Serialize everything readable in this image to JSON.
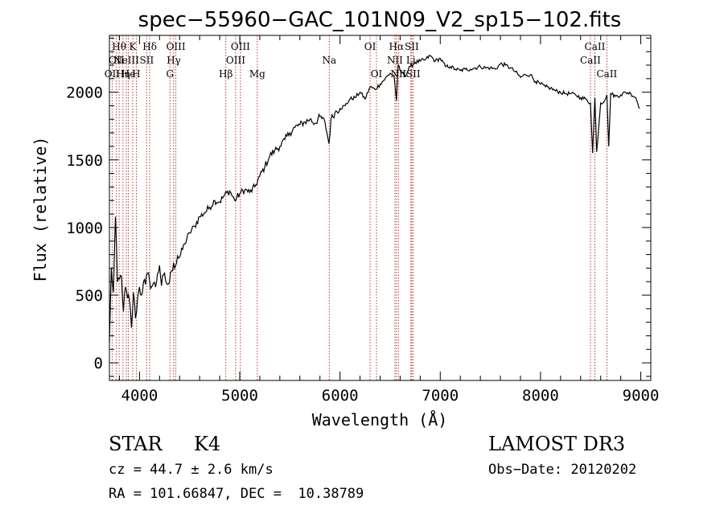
{
  "colors": {
    "axis": "#000000",
    "spectrum": "#000000",
    "line_marker": "#b22222"
  },
  "chart_data": {
    "type": "line",
    "title": "spec−55960−GAC_101N09_V2_sp15−102.fits",
    "xlabel": "Wavelength (Å)",
    "ylabel": "Flux (relative)",
    "xlim": [
      3700,
      9100
    ],
    "ylim": [
      -130,
      2420
    ],
    "xticks": [
      4000,
      5000,
      6000,
      7000,
      8000,
      9000
    ],
    "yticks": [
      0,
      500,
      1000,
      1500,
      2000
    ],
    "x_minor_step": 200,
    "y_minor_step": 100,
    "spectrum": {
      "x": [
        3700,
        3720,
        3740,
        3760,
        3780,
        3800,
        3820,
        3840,
        3860,
        3880,
        3900,
        3920,
        3940,
        3960,
        3980,
        4000,
        4020,
        4040,
        4060,
        4080,
        4100,
        4120,
        4140,
        4160,
        4180,
        4200,
        4220,
        4240,
        4260,
        4280,
        4300,
        4320,
        4340,
        4360,
        4380,
        4400,
        4450,
        4500,
        4550,
        4600,
        4650,
        4700,
        4750,
        4800,
        4850,
        4900,
        4950,
        5000,
        5050,
        5100,
        5150,
        5200,
        5250,
        5300,
        5350,
        5400,
        5450,
        5500,
        5550,
        5600,
        5650,
        5700,
        5750,
        5800,
        5850,
        5890,
        5910,
        5950,
        6000,
        6050,
        6100,
        6150,
        6200,
        6250,
        6300,
        6350,
        6400,
        6450,
        6500,
        6540,
        6563,
        6580,
        6600,
        6650,
        6700,
        6750,
        6800,
        6850,
        6900,
        6950,
        7000,
        7050,
        7100,
        7150,
        7200,
        7250,
        7300,
        7350,
        7400,
        7450,
        7500,
        7550,
        7600,
        7650,
        7700,
        7750,
        7800,
        7850,
        7900,
        7950,
        8000,
        8050,
        8100,
        8150,
        8200,
        8250,
        8300,
        8350,
        8400,
        8450,
        8498,
        8520,
        8542,
        8560,
        8600,
        8640,
        8662,
        8680,
        8700,
        8750,
        8800,
        8850,
        8900,
        8950,
        8990
      ],
      "y": [
        150,
        700,
        520,
        1080,
        600,
        620,
        640,
        380,
        560,
        480,
        470,
        260,
        520,
        330,
        470,
        560,
        500,
        600,
        580,
        660,
        610,
        560,
        590,
        560,
        660,
        720,
        570,
        650,
        610,
        580,
        600,
        680,
        740,
        720,
        790,
        780,
        880,
        960,
        1010,
        1080,
        1110,
        1150,
        1200,
        1190,
        1240,
        1270,
        1200,
        1250,
        1280,
        1260,
        1300,
        1380,
        1450,
        1530,
        1570,
        1600,
        1650,
        1700,
        1740,
        1760,
        1780,
        1800,
        1770,
        1820,
        1780,
        1620,
        1800,
        1850,
        1880,
        1900,
        1950,
        1960,
        2000,
        1950,
        2040,
        2020,
        2060,
        2100,
        2140,
        2120,
        1940,
        2200,
        2160,
        2120,
        2190,
        2220,
        2230,
        2240,
        2270,
        2230,
        2250,
        2190,
        2190,
        2170,
        2160,
        2170,
        2170,
        2180,
        2190,
        2180,
        2180,
        2170,
        2210,
        2200,
        2180,
        2150,
        2110,
        2130,
        2130,
        2080,
        2060,
        2040,
        2030,
        2010,
        2000,
        1990,
        1990,
        1980,
        1960,
        1950,
        1920,
        1550,
        1960,
        1560,
        1920,
        1940,
        1980,
        1600,
        1990,
        1970,
        1980,
        2000,
        1990,
        1960,
        1880
      ]
    },
    "lines": [
      {
        "wave": 3727,
        "label": "OII",
        "row": 3
      },
      {
        "wave": 3770,
        "label": "OII",
        "row": 2
      },
      {
        "wave": 3797,
        "label": "Hθ",
        "row": 1
      },
      {
        "wave": 3835,
        "label": "Hη",
        "row": 3
      },
      {
        "wave": 3869,
        "label": "NeIII",
        "row": 2
      },
      {
        "wave": 3889,
        "label": "He",
        "row": 3
      },
      {
        "wave": 3933,
        "label": "K",
        "row": 1
      },
      {
        "wave": 3968,
        "label": "H",
        "row": 3
      },
      {
        "wave": 4072,
        "label": "SII",
        "row": 2
      },
      {
        "wave": 4102,
        "label": "Hδ",
        "row": 1
      },
      {
        "wave": 4304,
        "label": "G",
        "row": 3
      },
      {
        "wave": 4341,
        "label": "Hγ",
        "row": 2
      },
      {
        "wave": 4363,
        "label": "OIII",
        "row": 1
      },
      {
        "wave": 4861,
        "label": "Hβ",
        "row": 3
      },
      {
        "wave": 4959,
        "label": "OIII",
        "row": 2
      },
      {
        "wave": 5007,
        "label": "OIII",
        "row": 1
      },
      {
        "wave": 5175,
        "label": "Mg",
        "row": 3
      },
      {
        "wave": 5893,
        "label": "Na",
        "row": 2
      },
      {
        "wave": 6300,
        "label": "OI",
        "row": 1
      },
      {
        "wave": 6364,
        "label": "OI",
        "row": 3
      },
      {
        "wave": 6548,
        "label": "NII",
        "row": 2
      },
      {
        "wave": 6563,
        "label": "Hα",
        "row": 1
      },
      {
        "wave": 6583,
        "label": "NII",
        "row": 3
      },
      {
        "wave": 6716,
        "label": "SII",
        "row": 1
      },
      {
        "wave": 6707,
        "label": "Li",
        "row": 2
      },
      {
        "wave": 6731,
        "label": "SII",
        "row": 3
      },
      {
        "wave": 8498,
        "label": "CaII",
        "row": 2
      },
      {
        "wave": 8542,
        "label": "CaII",
        "row": 1
      },
      {
        "wave": 8662,
        "label": "CaII",
        "row": 3
      }
    ]
  },
  "info": {
    "object_type": "STAR",
    "subclass": "K4",
    "survey": "LAMOST DR3",
    "redshift": "cz = 44.7 ± 2.6 km/s",
    "obs_date": "Obs−Date: 20120202",
    "coords": "RA = 101.66847, DEC =  10.38789"
  }
}
